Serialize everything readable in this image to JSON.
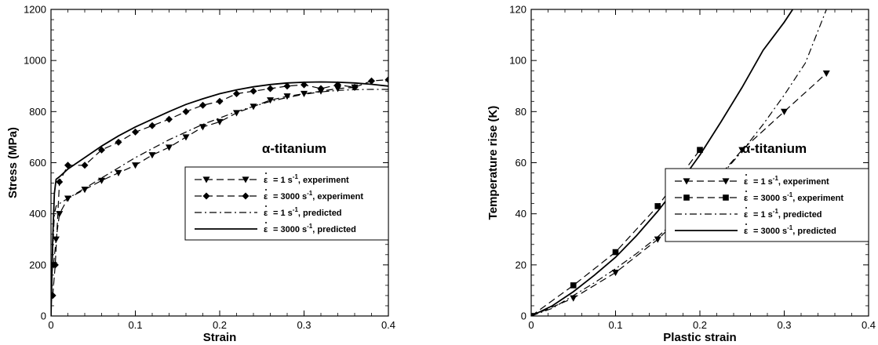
{
  "chart_data": [
    {
      "type": "line",
      "title": "α-titanium",
      "xlabel": "Strain",
      "ylabel": "Stress (MPa)",
      "xlim": [
        0,
        0.4
      ],
      "ylim": [
        0,
        1200
      ],
      "xticks": [
        "0",
        "0.1",
        "0.2",
        "0.3",
        "0.4"
      ],
      "yticks": [
        "0",
        "200",
        "400",
        "600",
        "800",
        "1000",
        "1200"
      ],
      "grid": false,
      "legend_position": "lower-right",
      "series": [
        {
          "name": "ε̇ = 1 s⁻¹, experiment",
          "label_parts": [
            "= 1 s",
            "-1",
            ", experiment"
          ],
          "style": "dashed",
          "marker": "triangle-down",
          "x": [
            0.003,
            0.006,
            0.01,
            0.02,
            0.04,
            0.06,
            0.08,
            0.1,
            0.12,
            0.14,
            0.16,
            0.18,
            0.2,
            0.22,
            0.24,
            0.26,
            0.28,
            0.3,
            0.32,
            0.34,
            0.36
          ],
          "y": [
            200,
            300,
            400,
            460,
            495,
            530,
            560,
            590,
            630,
            660,
            700,
            740,
            760,
            795,
            820,
            845,
            860,
            870,
            880,
            890,
            895
          ]
        },
        {
          "name": "ε̇ = 3000 s⁻¹, experiment",
          "label_parts": [
            "= 3000 s",
            "-1",
            ", experiment"
          ],
          "style": "dashed",
          "marker": "diamond",
          "x": [
            0.002,
            0.005,
            0.01,
            0.02,
            0.04,
            0.06,
            0.08,
            0.1,
            0.12,
            0.14,
            0.16,
            0.18,
            0.2,
            0.22,
            0.24,
            0.26,
            0.28,
            0.3,
            0.32,
            0.34,
            0.36,
            0.38,
            0.4
          ],
          "y": [
            80,
            200,
            525,
            590,
            590,
            650,
            680,
            720,
            745,
            770,
            800,
            825,
            840,
            870,
            880,
            890,
            900,
            905,
            890,
            905,
            895,
            920,
            925
          ]
        },
        {
          "name": "ε̇ = 1 s⁻¹, predicted",
          "label_parts": [
            "= 1 s",
            "-1",
            ", predicted"
          ],
          "style": "dashdot",
          "marker": "none",
          "x": [
            0,
            0.002,
            0.004,
            0.006,
            0.01,
            0.02,
            0.04,
            0.06,
            0.08,
            0.1,
            0.12,
            0.14,
            0.16,
            0.18,
            0.2,
            0.22,
            0.24,
            0.26,
            0.28,
            0.3,
            0.32,
            0.34,
            0.36,
            0.38,
            0.4
          ],
          "y": [
            0,
            250,
            400,
            430,
            440,
            460,
            500,
            540,
            580,
            620,
            655,
            690,
            720,
            750,
            775,
            800,
            820,
            840,
            855,
            868,
            877,
            883,
            886,
            887,
            887
          ]
        },
        {
          "name": "ε̇ = 3000 s⁻¹, predicted",
          "label_parts": [
            "= 3000 s",
            "-1",
            ", predicted"
          ],
          "style": "solid",
          "marker": "none",
          "x": [
            0,
            0.002,
            0.004,
            0.006,
            0.01,
            0.02,
            0.04,
            0.06,
            0.08,
            0.1,
            0.12,
            0.14,
            0.16,
            0.18,
            0.2,
            0.22,
            0.24,
            0.26,
            0.28,
            0.3,
            0.32,
            0.34,
            0.36,
            0.38,
            0.4
          ],
          "y": [
            0,
            300,
            480,
            535,
            545,
            575,
            620,
            665,
            705,
            740,
            770,
            800,
            828,
            850,
            870,
            885,
            897,
            906,
            912,
            915,
            916,
            915,
            912,
            907,
            900
          ]
        }
      ]
    },
    {
      "type": "line",
      "title": "α-titanium",
      "xlabel": "Plastic strain",
      "ylabel": "Temperature rise (K)",
      "xlim": [
        0,
        0.4
      ],
      "ylim": [
        0,
        120
      ],
      "xticks": [
        "0",
        "0.1",
        "0.2",
        "0.3",
        "0.4"
      ],
      "yticks": [
        "0",
        "20",
        "40",
        "60",
        "80",
        "100",
        "120"
      ],
      "grid": false,
      "legend_position": "lower-right",
      "series": [
        {
          "name": "ε̇ = 1 s⁻¹, experiment",
          "label_parts": [
            "= 1 s",
            "-1",
            ", experiment"
          ],
          "style": "dashed",
          "marker": "triangle-down",
          "x": [
            0,
            0.05,
            0.1,
            0.15,
            0.2,
            0.25,
            0.3,
            0.35
          ],
          "y": [
            0,
            7,
            17,
            30,
            46,
            65,
            80,
            95
          ]
        },
        {
          "name": "ε̇ = 3000 s⁻¹, experiment",
          "label_parts": [
            "= 3000 s",
            "-1",
            ", experiment"
          ],
          "style": "dashed",
          "marker": "square",
          "x": [
            0,
            0.05,
            0.1,
            0.15,
            0.2
          ],
          "y": [
            0,
            12,
            25,
            43,
            65
          ]
        },
        {
          "name": "ε̇ = 1 s⁻¹, predicted",
          "label_parts": [
            "= 1 s",
            "-1",
            ", predicted"
          ],
          "style": "dashdot",
          "marker": "none",
          "x": [
            0,
            0.025,
            0.05,
            0.075,
            0.1,
            0.125,
            0.15,
            0.175,
            0.2,
            0.225,
            0.25,
            0.275,
            0.3,
            0.325,
            0.35
          ],
          "y": [
            0,
            3,
            8,
            13,
            18.5,
            24.5,
            31,
            38.5,
            46.5,
            55,
            64.5,
            75,
            86.5,
            99,
            120
          ]
        },
        {
          "name": "ε̇ = 3000 s⁻¹, predicted",
          "label_parts": [
            "= 3000 s",
            "-1",
            ", predicted"
          ],
          "style": "solid",
          "marker": "none",
          "x": [
            0,
            0.025,
            0.05,
            0.075,
            0.1,
            0.125,
            0.15,
            0.175,
            0.2,
            0.225,
            0.25,
            0.275,
            0.3,
            0.31
          ],
          "y": [
            0,
            4,
            9.5,
            16,
            23,
            31.5,
            41,
            51.5,
            63,
            76,
            89.5,
            104,
            115,
            120
          ]
        }
      ]
    }
  ]
}
